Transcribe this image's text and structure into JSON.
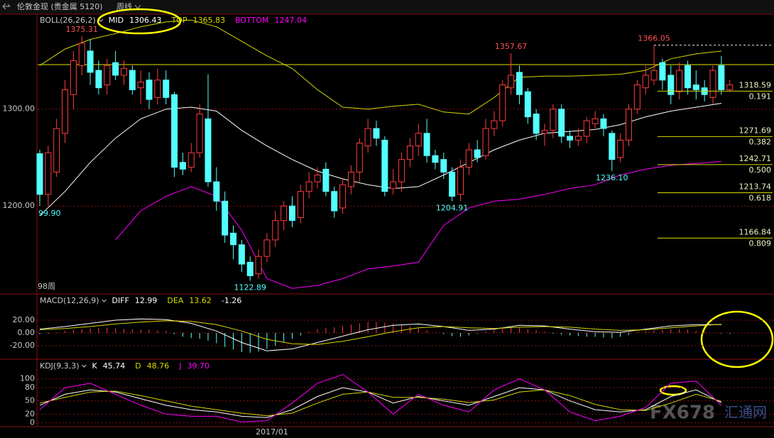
{
  "header": {
    "title": "伦敦金现 (贵金属 5120)",
    "period": "周线"
  },
  "watermark": {
    "brand": "FX678",
    "site": "汇通网"
  },
  "chart_data": [
    {
      "type": "candlestick",
      "indicator": "BOLL(26,26,2)",
      "ylim": [
        1110,
        1398
      ],
      "yticks": [
        {
          "value": 1300,
          "label": "1300.00"
        },
        {
          "value": 1200,
          "label": "1200.00"
        }
      ],
      "up_color": "#ff3c3c",
      "down_color": "#54ffff",
      "hline": 1346,
      "hline_color": "#e6e600",
      "candles": [
        [
          1254,
          1258,
          1200,
          1212
        ],
        [
          1212,
          1262,
          1199.9,
          1255
        ],
        [
          1235,
          1290,
          1230,
          1280
        ],
        [
          1275,
          1330,
          1265,
          1320
        ],
        [
          1315,
          1360,
          1300,
          1350
        ],
        [
          1345,
          1375.31,
          1335,
          1368
        ],
        [
          1360,
          1372,
          1325,
          1338
        ],
        [
          1340,
          1350,
          1315,
          1322
        ],
        [
          1325,
          1352,
          1315,
          1345
        ],
        [
          1348,
          1360,
          1330,
          1335
        ],
        [
          1335,
          1350,
          1325,
          1342
        ],
        [
          1340,
          1345,
          1315,
          1320
        ],
        [
          1322,
          1340,
          1305,
          1328
        ],
        [
          1330,
          1338,
          1300,
          1310
        ],
        [
          1312,
          1342,
          1305,
          1330
        ],
        [
          1330,
          1340,
          1305,
          1312
        ],
        [
          1315,
          1318,
          1230,
          1240
        ],
        [
          1245,
          1255,
          1232,
          1238
        ],
        [
          1240,
          1265,
          1235,
          1255
        ],
        [
          1255,
          1305,
          1250,
          1295
        ],
        [
          1290,
          1336,
          1220,
          1225
        ],
        [
          1225,
          1240,
          1195,
          1205
        ],
        [
          1205,
          1215,
          1162,
          1170
        ],
        [
          1172,
          1180,
          1145,
          1160
        ],
        [
          1160,
          1165,
          1132,
          1140
        ],
        [
          1142,
          1148,
          1122.89,
          1128
        ],
        [
          1130,
          1155,
          1125,
          1148
        ],
        [
          1148,
          1172,
          1142,
          1165
        ],
        [
          1165,
          1195,
          1158,
          1185
        ],
        [
          1185,
          1205,
          1175,
          1200
        ],
        [
          1200,
          1210,
          1178,
          1185
        ],
        [
          1188,
          1222,
          1182,
          1215
        ],
        [
          1215,
          1235,
          1208,
          1225
        ],
        [
          1225,
          1240,
          1218,
          1232
        ],
        [
          1238,
          1245,
          1210,
          1215
        ],
        [
          1215,
          1220,
          1188,
          1195
        ],
        [
          1198,
          1228,
          1192,
          1222
        ],
        [
          1220,
          1242,
          1212,
          1235
        ],
        [
          1235,
          1270,
          1225,
          1265
        ],
        [
          1262,
          1290,
          1255,
          1280
        ],
        [
          1280,
          1288,
          1262,
          1270
        ],
        [
          1268,
          1272,
          1210,
          1215
        ],
        [
          1218,
          1238,
          1212,
          1225
        ],
        [
          1225,
          1255,
          1215,
          1248
        ],
        [
          1248,
          1270,
          1240,
          1262
        ],
        [
          1262,
          1285,
          1252,
          1275
        ],
        [
          1275,
          1290,
          1245,
          1252
        ],
        [
          1252,
          1258,
          1238,
          1245
        ],
        [
          1248,
          1255,
          1228,
          1235
        ],
        [
          1235,
          1240,
          1204.91,
          1210
        ],
        [
          1212,
          1248,
          1205,
          1240
        ],
        [
          1240,
          1265,
          1232,
          1258
        ],
        [
          1258,
          1268,
          1245,
          1250
        ],
        [
          1252,
          1290,
          1248,
          1280
        ],
        [
          1280,
          1298,
          1272,
          1288
        ],
        [
          1288,
          1330,
          1282,
          1325
        ],
        [
          1322,
          1357.67,
          1315,
          1335
        ],
        [
          1338,
          1345,
          1305,
          1315
        ],
        [
          1318,
          1322,
          1285,
          1292
        ],
        [
          1295,
          1300,
          1268,
          1275
        ],
        [
          1275,
          1285,
          1262,
          1278
        ],
        [
          1278,
          1305,
          1270,
          1300
        ],
        [
          1300,
          1305,
          1265,
          1272
        ],
        [
          1272,
          1278,
          1260,
          1268
        ],
        [
          1268,
          1280,
          1262,
          1272
        ],
        [
          1272,
          1292,
          1265,
          1288
        ],
        [
          1285,
          1298,
          1280,
          1290
        ],
        [
          1290,
          1295,
          1272,
          1280
        ],
        [
          1275,
          1278,
          1236.1,
          1248
        ],
        [
          1250,
          1275,
          1245,
          1268
        ],
        [
          1268,
          1305,
          1262,
          1300
        ],
        [
          1300,
          1330,
          1295,
          1325
        ],
        [
          1322,
          1345,
          1315,
          1335
        ],
        [
          1330,
          1366.05,
          1325,
          1340
        ],
        [
          1348,
          1352,
          1320,
          1330
        ],
        [
          1335,
          1345,
          1305,
          1315
        ],
        [
          1318,
          1348,
          1310,
          1340
        ],
        [
          1345,
          1350,
          1315,
          1322
        ],
        [
          1325,
          1340,
          1310,
          1320
        ],
        [
          1322,
          1330,
          1308,
          1315
        ],
        [
          1312,
          1345,
          1305,
          1340
        ],
        [
          1345,
          1355,
          1315,
          1320
        ],
        [
          1320,
          1330,
          1318,
          1325
        ]
      ],
      "line_x": [
        0,
        3,
        6,
        9,
        12,
        15,
        18,
        21,
        24,
        27,
        30,
        33,
        36,
        39,
        42,
        45,
        48,
        51,
        54,
        57,
        60,
        63,
        66,
        69,
        72,
        75,
        78,
        81
      ],
      "series": [
        {
          "name": "MID",
          "color": "#ffffff",
          "current": 1306.43,
          "values": [
            1190,
            1215,
            1245,
            1270,
            1290,
            1300,
            1302,
            1298,
            1278,
            1262,
            1248,
            1236,
            1228,
            1222,
            1218,
            1220,
            1232,
            1245,
            1258,
            1268,
            1275,
            1277,
            1279,
            1284,
            1292,
            1298,
            1302,
            1306
          ]
        },
        {
          "name": "TOP",
          "color": "#d8d800",
          "current": 1365.83,
          "values": [
            1345,
            1362,
            1372,
            1378,
            1385,
            1390,
            1392,
            1385,
            1370,
            1355,
            1342,
            1320,
            1302,
            1300,
            1303,
            1305,
            1297,
            1295,
            1312,
            1333,
            1334,
            1334,
            1335,
            1336,
            1340,
            1352,
            1357,
            1360
          ]
        },
        {
          "name": "BOTTOM",
          "color": "#ff00ff",
          "current": 1247.04,
          "values": [
            null,
            null,
            null,
            1165,
            1195,
            1210,
            1220,
            1210,
            1175,
            1125,
            1115,
            1118,
            1125,
            1135,
            1138,
            1142,
            1180,
            1198,
            1205,
            1207,
            1212,
            1218,
            1222,
            1232,
            1238,
            1242,
            1244,
            1246
          ]
        }
      ],
      "annotations": [
        1375.31,
        1357.67,
        1366.05,
        1122.89,
        1204.91,
        {
          "value": 1236.1,
          "label": "1236.10"
        }
      ],
      "fib_levels": [
        {
          "price": 1318.59,
          "ratio": 0.191
        },
        {
          "price": 1271.69,
          "ratio": 0.382
        },
        {
          "price": 1242.71,
          "ratio": {
            "value": 0.5,
            "label": "0.500"
          }
        },
        {
          "price": 1213.74,
          "ratio": 0.618
        },
        {
          "price": 1166.84,
          "ratio": 0.809
        }
      ],
      "left_label": "99.90",
      "footer_label": "98周"
    },
    {
      "type": "macd",
      "indicator": "MACD(12,26,9)",
      "ylim": [
        -40,
        60
      ],
      "yticks": [
        {
          "value": 20,
          "label": "20.00"
        },
        {
          "value": 0,
          "label": "0.00"
        },
        {
          "value": -20,
          "label": "-20.00"
        }
      ],
      "histogram": {
        "current": -1.26,
        "up_color": "#ff3c3c",
        "down_color": "#54ffff",
        "values": [
          -2,
          -1,
          1,
          3,
          5,
          6,
          7,
          8,
          8,
          7,
          6,
          6,
          5,
          5,
          4,
          3,
          -2,
          -6,
          -8,
          -9,
          -12,
          -16,
          -22,
          -26,
          -30,
          -31,
          -29,
          -25,
          -20,
          -14,
          -9,
          -4,
          2,
          6,
          8,
          9,
          11,
          13,
          15,
          17,
          17,
          16,
          14,
          12,
          10,
          8,
          4,
          1,
          -2,
          -5,
          -6,
          -4,
          -1,
          2,
          5,
          7,
          8,
          8,
          6,
          4,
          2,
          -1,
          -3,
          -4,
          -5,
          -6,
          -6,
          -7,
          -8,
          -6,
          -3,
          1,
          3,
          4,
          5,
          6,
          6,
          5,
          3,
          2,
          0,
          -1,
          -1.26
        ]
      },
      "line_x": [
        0,
        3,
        6,
        9,
        12,
        15,
        18,
        21,
        24,
        27,
        30,
        33,
        36,
        39,
        42,
        45,
        48,
        51,
        54,
        57,
        60,
        63,
        66,
        69,
        72,
        75,
        78,
        81
      ],
      "series": [
        {
          "name": "DIFF",
          "color": "#ffffff",
          "current": 12.99,
          "values": [
            6,
            10,
            15,
            20,
            22,
            21,
            15,
            3,
            -15,
            -28,
            -25,
            -15,
            -5,
            5,
            12,
            14,
            10,
            4,
            6,
            12,
            11,
            6,
            2,
            1,
            6,
            11,
            13,
            13
          ]
        },
        {
          "name": "DEA",
          "color": "#d8d800",
          "current": 13.62,
          "values": [
            5,
            7,
            10,
            14,
            17,
            19,
            18,
            13,
            3,
            -10,
            -17,
            -18,
            -13,
            -6,
            2,
            8,
            10,
            8,
            7,
            9,
            10,
            9,
            6,
            4,
            5,
            8,
            11,
            13.6
          ]
        }
      ]
    },
    {
      "type": "kdj",
      "indicator": "KDJ(9,3,3)",
      "ylim": [
        -7,
        143
      ],
      "yticks": [
        100,
        80,
        50,
        20,
        0
      ],
      "line_x": [
        0,
        3,
        6,
        9,
        12,
        15,
        18,
        21,
        24,
        27,
        30,
        33,
        36,
        39,
        42,
        45,
        48,
        51,
        54,
        57,
        60,
        63,
        66,
        69,
        72,
        75,
        78,
        81
      ],
      "series": [
        {
          "name": "K",
          "color": "#ffffff",
          "current": 45.74,
          "values": [
            40,
            65,
            75,
            70,
            55,
            40,
            30,
            25,
            15,
            12,
            30,
            60,
            80,
            70,
            45,
            60,
            50,
            40,
            60,
            80,
            75,
            50,
            30,
            25,
            30,
            60,
            75,
            46
          ]
        },
        {
          "name": "D",
          "color": "#d8d800",
          "current": 48.76,
          "values": [
            45,
            58,
            70,
            72,
            62,
            50,
            38,
            30,
            22,
            16,
            22,
            45,
            65,
            70,
            58,
            58,
            54,
            46,
            52,
            70,
            75,
            62,
            42,
            30,
            28,
            45,
            65,
            49
          ]
        },
        {
          "name": "J",
          "color": "#ff00ff",
          "current": {
            "value": 39.7,
            "label": "39.70"
          },
          "values": [
            30,
            80,
            90,
            65,
            40,
            20,
            15,
            15,
            2,
            5,
            45,
            90,
            110,
            70,
            20,
            65,
            40,
            25,
            75,
            100,
            75,
            25,
            5,
            15,
            35,
            90,
            95,
            40
          ]
        }
      ],
      "x_label": "2017/01"
    }
  ]
}
